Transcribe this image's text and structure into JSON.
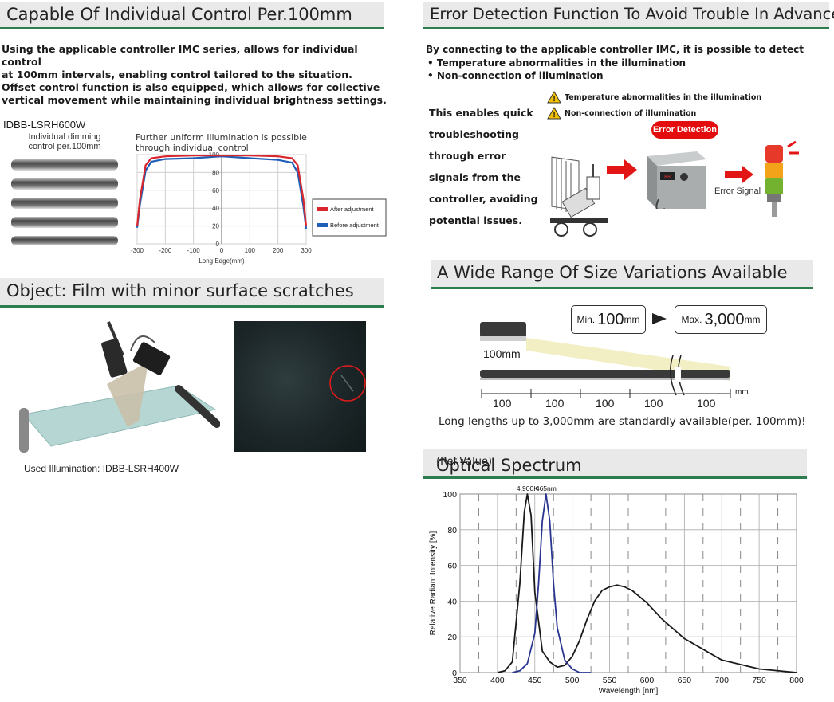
{
  "sec1": {
    "title": "Capable Of Individual Control  Per.100mm",
    "paragraph": [
      "Using the applicable controller IMC series, allows for individual control",
      "at 100mm intervals, enabling control tailored to the situation.",
      "Offset control function is also equipped, which allows for collective",
      "vertical movement while maintaining individual brightness settings."
    ],
    "model": "IDBB-LSRH600W",
    "dimming_caption": [
      "Individual dimming",
      "control per.100mm"
    ],
    "graph_caption": [
      "Further uniform illumination is possible",
      "through individual control"
    ],
    "chart_data": {
      "type": "line",
      "xlabel": "Long Edge(mm)",
      "ylabel": "",
      "xlim": [
        -300,
        300
      ],
      "ylim": [
        0,
        100
      ],
      "x_ticks": [
        "-300",
        "-200",
        "-100",
        "0",
        "100",
        "200",
        "300"
      ],
      "y_ticks": [
        "0",
        "20",
        "40",
        "60",
        "80",
        "100"
      ],
      "legend_position": "right",
      "series": [
        {
          "name": "After adjustment",
          "color": "#d7262e",
          "x": [
            -300,
            -290,
            -270,
            -250,
            -200,
            -100,
            0,
            100,
            200,
            250,
            270,
            290,
            300
          ],
          "y": [
            20,
            50,
            88,
            96,
            98,
            99,
            99,
            99,
            98,
            96,
            88,
            50,
            20
          ]
        },
        {
          "name": "Before adjustment",
          "color": "#1f5fb8",
          "x": [
            -300,
            -290,
            -270,
            -250,
            -200,
            -100,
            0,
            100,
            200,
            250,
            270,
            290,
            300
          ],
          "y": [
            18,
            44,
            82,
            92,
            95,
            96,
            98,
            96,
            94,
            91,
            80,
            42,
            17
          ]
        }
      ]
    }
  },
  "sec2": {
    "title": "Object: Film with minor surface scratches",
    "used_illumination": "Used Illumination: IDBB-LSRH400W"
  },
  "sec3": {
    "title": "Error Detection Function To Avoid Trouble In Advance!",
    "intro": "By connecting to the applicable controller IMC, it is possible to detect",
    "bullets": [
      "• Temperature abnormalities in the illumination",
      "• Non-connection of illumination"
    ],
    "side_text": [
      "This enables quick",
      "troubleshooting",
      "through error",
      "signals from the",
      "controller, avoiding",
      "potential issues."
    ],
    "warnings": [
      "Temperature abnormalities in the illumination",
      "Non-connection of illumination"
    ],
    "error_badge": "Error Detection",
    "error_signal": "Error Signal"
  },
  "sec4": {
    "title": "A Wide Range Of Size Variations Available",
    "min_prefix": "Min.",
    "min_value": "100",
    "min_unit": "mm",
    "max_prefix": "Max.",
    "max_value": "3,000",
    "max_unit": "mm",
    "unit_label": "100mm",
    "scale_labels": [
      "100",
      "100",
      "100",
      "100",
      "100"
    ],
    "scale_unit": "mm",
    "caption": "Long lengths up to 3,000mm are standardly available(per. 100mm)!"
  },
  "sec5": {
    "title": "Optical Spectrum",
    "title_suffix": "(Ref.Value)",
    "chart_data": {
      "type": "line",
      "xlabel": "Wavelength [nm]",
      "ylabel": "Relative Radiant Intensity [%]",
      "xlim": [
        350,
        800
      ],
      "ylim": [
        0,
        100
      ],
      "x_ticks": [
        "350",
        "400",
        "450",
        "500",
        "550",
        "600",
        "650",
        "700",
        "750",
        "800"
      ],
      "y_ticks": [
        "0",
        "20",
        "40",
        "60",
        "80",
        "100"
      ],
      "series": [
        {
          "name": "4,900K",
          "color": "#1a1a1a",
          "x": [
            400,
            410,
            420,
            430,
            436,
            440,
            445,
            450,
            460,
            470,
            480,
            490,
            500,
            510,
            520,
            530,
            540,
            550,
            560,
            570,
            580,
            600,
            620,
            650,
            700,
            750,
            800
          ],
          "y": [
            0,
            1,
            6,
            50,
            90,
            100,
            88,
            45,
            12,
            6,
            3,
            4,
            9,
            18,
            30,
            40,
            46,
            48,
            49,
            48,
            46,
            39,
            30,
            19,
            7,
            2,
            0
          ]
        },
        {
          "name": "465nm",
          "color": "#2a3590",
          "x": [
            420,
            430,
            440,
            450,
            455,
            460,
            465,
            470,
            475,
            480,
            490,
            500,
            510,
            525
          ],
          "y": [
            0,
            1,
            5,
            22,
            50,
            85,
            100,
            85,
            50,
            25,
            7,
            2,
            0,
            0
          ]
        }
      ]
    }
  }
}
